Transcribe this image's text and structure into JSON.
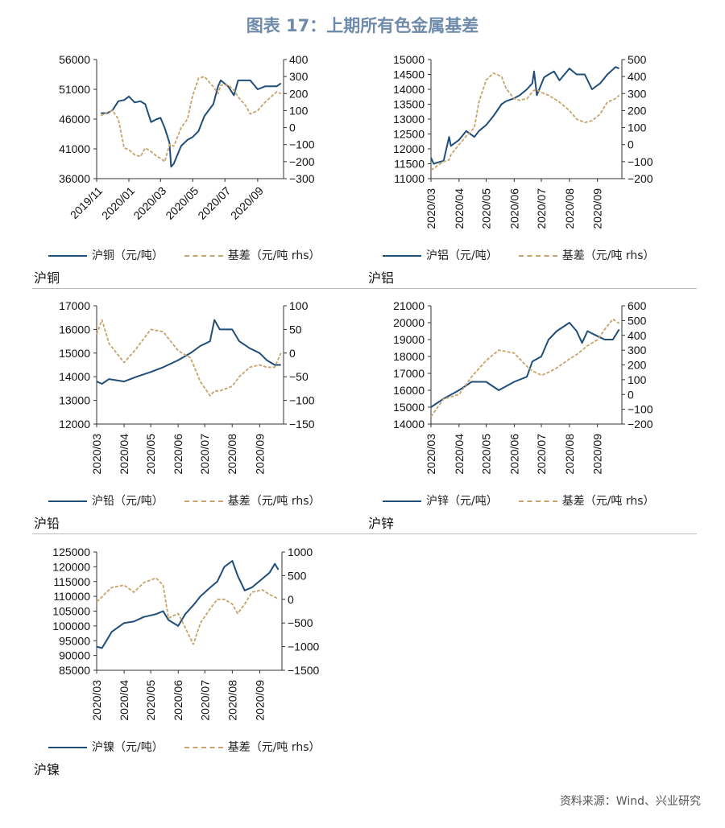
{
  "title": "图表 17：上期所有色金属基差",
  "source": "资料来源：Wind、兴业研究",
  "chart_data": [
    {
      "type": "line",
      "caption": "沪铜",
      "xlim": [
        "2019-11-01",
        "2020-10-20"
      ],
      "xticks": [
        "2019/11",
        "2020/01",
        "2020/03",
        "2020/05",
        "2020/07",
        "2020/09"
      ],
      "xtick_rotation": 45,
      "ylim": [
        36000,
        56000
      ],
      "yticks": [
        36000,
        41000,
        46000,
        51000,
        56000
      ],
      "y2lim": [
        -300,
        400
      ],
      "y2ticks": [
        -300,
        -200,
        -100,
        0,
        100,
        200,
        300,
        400
      ],
      "x": [
        "2019-11-09",
        "2019-11-21",
        "2019-12-01",
        "2019-12-12",
        "2019-12-23",
        "2020-01-01",
        "2020-01-12",
        "2020-01-23",
        "2020-02-01",
        "2020-02-12",
        "2020-02-23",
        "2020-03-01",
        "2020-03-09",
        "2020-03-18",
        "2020-03-21",
        "2020-03-26",
        "2020-04-09",
        "2020-04-21",
        "2020-05-01",
        "2020-05-12",
        "2020-05-23",
        "2020-06-09",
        "2020-06-18",
        "2020-06-23",
        "2020-07-07",
        "2020-07-18",
        "2020-07-26",
        "2020-08-09",
        "2020-08-18",
        "2020-09-01",
        "2020-09-15",
        "2020-10-07",
        "2020-10-15"
      ],
      "series": [
        {
          "name": "沪铜（元/吨）",
          "axis": "left",
          "values": [
            47000,
            47000,
            47500,
            49000,
            49200,
            49800,
            48800,
            49000,
            48500,
            45500,
            46000,
            46200,
            44500,
            42000,
            38000,
            38500,
            41500,
            42500,
            43000,
            44000,
            46500,
            48500,
            51500,
            52500,
            51500,
            50000,
            52500,
            52500,
            52500,
            51000,
            51500,
            51500,
            52000
          ]
        },
        {
          "name": "基差（元/吨 rhs）",
          "axis": "right",
          "values": [
            70,
            90,
            100,
            50,
            -120,
            -130,
            -160,
            -170,
            -120,
            -140,
            -170,
            -180,
            -200,
            -100,
            -100,
            -110,
            0,
            50,
            190,
            290,
            300,
            240,
            200,
            250,
            250,
            220,
            180,
            130,
            80,
            100,
            150,
            210,
            200
          ]
        }
      ]
    },
    {
      "type": "line",
      "caption": "沪铝",
      "xlim": [
        "2020-03-01",
        "2020-09-28"
      ],
      "xticks": [
        "2020/03",
        "2020/04",
        "2020/05",
        "2020/06",
        "2020/07",
        "2020/08",
        "2020/09"
      ],
      "xtick_rotation": 90,
      "ylim": [
        11000,
        15000
      ],
      "yticks": [
        11000,
        11500,
        12000,
        12500,
        13000,
        13500,
        14000,
        14500,
        15000
      ],
      "y2lim": [
        -200,
        500
      ],
      "y2ticks": [
        -200,
        -100,
        0,
        100,
        200,
        300,
        400,
        500
      ],
      "x": [
        "2020-03-01",
        "2020-03-04",
        "2020-03-09",
        "2020-03-15",
        "2020-03-21",
        "2020-03-23",
        "2020-04-01",
        "2020-04-09",
        "2020-04-18",
        "2020-04-23",
        "2020-05-01",
        "2020-05-09",
        "2020-05-18",
        "2020-05-23",
        "2020-06-01",
        "2020-06-07",
        "2020-06-15",
        "2020-06-21",
        "2020-06-23",
        "2020-06-26",
        "2020-07-04",
        "2020-07-09",
        "2020-07-15",
        "2020-07-21",
        "2020-08-01",
        "2020-08-09",
        "2020-08-18",
        "2020-08-26",
        "2020-09-04",
        "2020-09-12",
        "2020-09-21",
        "2020-09-25"
      ],
      "series": [
        {
          "name": "沪铝（元/吨）",
          "axis": "left",
          "values": [
            11700,
            11500,
            11550,
            11600,
            12400,
            12100,
            12300,
            12600,
            12400,
            12600,
            12800,
            13100,
            13500,
            13600,
            13700,
            13800,
            14000,
            14200,
            14600,
            13800,
            14400,
            14500,
            14600,
            14300,
            14700,
            14500,
            14500,
            14000,
            14200,
            14500,
            14750,
            14700
          ]
        },
        {
          "name": "基差（元/吨 rhs）",
          "axis": "right",
          "values": [
            -150,
            -140,
            -120,
            -100,
            -90,
            -60,
            0,
            50,
            100,
            250,
            380,
            420,
            400,
            330,
            270,
            260,
            270,
            310,
            320,
            320,
            300,
            290,
            270,
            250,
            200,
            150,
            130,
            140,
            180,
            250,
            270,
            290
          ]
        }
      ]
    },
    {
      "type": "line",
      "caption": "沪铅",
      "xlim": [
        "2020-03-01",
        "2020-09-28"
      ],
      "xticks": [
        "2020/03",
        "2020/04",
        "2020/05",
        "2020/06",
        "2020/07",
        "2020/08",
        "2020/09"
      ],
      "xtick_rotation": 90,
      "ylim": [
        12000,
        17000
      ],
      "yticks": [
        12000,
        13000,
        14000,
        15000,
        16000,
        17000
      ],
      "y2lim": [
        -150,
        100
      ],
      "y2ticks": [
        -150,
        -100,
        -50,
        0,
        50,
        100
      ],
      "x": [
        "2020-03-01",
        "2020-03-07",
        "2020-03-15",
        "2020-04-01",
        "2020-04-15",
        "2020-05-01",
        "2020-05-15",
        "2020-06-01",
        "2020-06-15",
        "2020-06-26",
        "2020-07-07",
        "2020-07-12",
        "2020-07-18",
        "2020-08-01",
        "2020-08-09",
        "2020-08-21",
        "2020-09-01",
        "2020-09-09",
        "2020-09-18",
        "2020-09-25"
      ],
      "series": [
        {
          "name": "沪铅（元/吨）",
          "axis": "left",
          "values": [
            13800,
            13700,
            13900,
            13800,
            14000,
            14200,
            14400,
            14700,
            15000,
            15300,
            15500,
            16400,
            16000,
            16000,
            15500,
            15200,
            15000,
            14700,
            14500,
            14500
          ]
        },
        {
          "name": "基差（元/吨 rhs）",
          "axis": "right",
          "values": [
            40,
            70,
            20,
            -20,
            10,
            50,
            45,
            5,
            -10,
            -60,
            -90,
            -80,
            -80,
            -70,
            -50,
            -30,
            -25,
            -30,
            -30,
            0
          ]
        }
      ]
    },
    {
      "type": "line",
      "caption": "沪锌",
      "xlim": [
        "2020-03-01",
        "2020-09-28"
      ],
      "xticks": [
        "2020/03",
        "2020/04",
        "2020/05",
        "2020/06",
        "2020/07",
        "2020/08",
        "2020/09"
      ],
      "xtick_rotation": 90,
      "ylim": [
        14000,
        21000
      ],
      "yticks": [
        14000,
        15000,
        16000,
        17000,
        18000,
        19000,
        20000,
        21000
      ],
      "y2lim": [
        -200,
        600
      ],
      "y2ticks": [
        -200,
        -100,
        0,
        100,
        200,
        300,
        400,
        500,
        600
      ],
      "x": [
        "2020-03-01",
        "2020-03-15",
        "2020-04-01",
        "2020-04-15",
        "2020-05-01",
        "2020-05-15",
        "2020-06-01",
        "2020-06-15",
        "2020-06-21",
        "2020-07-01",
        "2020-07-09",
        "2020-07-18",
        "2020-08-01",
        "2020-08-09",
        "2020-08-15",
        "2020-08-21",
        "2020-09-01",
        "2020-09-09",
        "2020-09-18",
        "2020-09-25"
      ],
      "series": [
        {
          "name": "沪锌（元/吨）",
          "axis": "left",
          "values": [
            15000,
            15500,
            16000,
            16500,
            16500,
            16000,
            16500,
            16800,
            17700,
            18000,
            19000,
            19500,
            20000,
            19500,
            18800,
            19500,
            19200,
            19000,
            19000,
            19600
          ]
        },
        {
          "name": "基差（元/吨 rhs）",
          "axis": "right",
          "values": [
            -150,
            -30,
            0,
            120,
            230,
            300,
            280,
            190,
            160,
            130,
            150,
            180,
            240,
            270,
            300,
            330,
            370,
            440,
            510,
            480
          ]
        }
      ]
    },
    {
      "type": "line",
      "caption": "沪镍",
      "xlim": [
        "2020-03-01",
        "2020-09-26"
      ],
      "xticks": [
        "2020/03",
        "2020/04",
        "2020/05",
        "2020/06",
        "2020/07",
        "2020/08",
        "2020/09"
      ],
      "xtick_rotation": 90,
      "ylim": [
        85000,
        125000
      ],
      "yticks": [
        85000,
        90000,
        95000,
        100000,
        105000,
        110000,
        115000,
        120000,
        125000
      ],
      "y2lim": [
        -1500,
        1000
      ],
      "y2ticks": [
        -1500,
        -1000,
        -500,
        0,
        500,
        1000
      ],
      "x": [
        "2020-03-01",
        "2020-03-07",
        "2020-03-12",
        "2020-03-18",
        "2020-04-01",
        "2020-04-12",
        "2020-04-23",
        "2020-05-07",
        "2020-05-15",
        "2020-05-21",
        "2020-06-01",
        "2020-06-09",
        "2020-06-18",
        "2020-06-26",
        "2020-07-07",
        "2020-07-15",
        "2020-07-23",
        "2020-08-01",
        "2020-08-07",
        "2020-08-15",
        "2020-08-23",
        "2020-09-04",
        "2020-09-12",
        "2020-09-18",
        "2020-09-22"
      ],
      "series": [
        {
          "name": "沪镍（元/吨）",
          "axis": "left",
          "values": [
            93000,
            92500,
            95000,
            98000,
            101000,
            101500,
            103000,
            104000,
            105000,
            102000,
            100000,
            104000,
            107000,
            110000,
            113000,
            115000,
            120000,
            122000,
            117000,
            112000,
            113000,
            116000,
            118000,
            121000,
            119000
          ]
        },
        {
          "name": "基差（元/吨 rhs）",
          "axis": "right",
          "values": [
            -50,
            50,
            150,
            250,
            300,
            150,
            350,
            450,
            300,
            -400,
            -300,
            -600,
            -950,
            -500,
            -200,
            0,
            0,
            -100,
            -300,
            -100,
            150,
            200,
            100,
            50,
            0
          ]
        }
      ]
    }
  ],
  "colors": {
    "price": "#1f4e79",
    "basis": "#c8a36c",
    "title": "#6f8bab"
  }
}
